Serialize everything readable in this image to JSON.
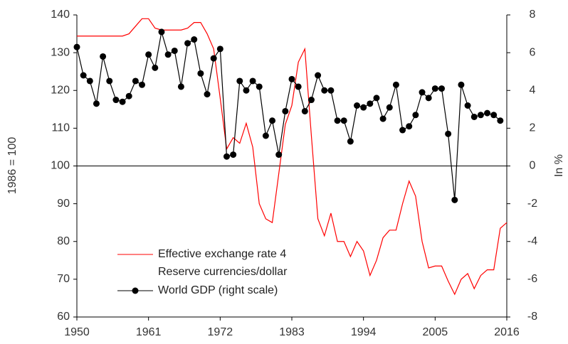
{
  "chart_data": {
    "type": "line",
    "y_label": "1986 = 100",
    "y2_label": "In %",
    "x": [
      1950,
      1951,
      1952,
      1953,
      1954,
      1955,
      1956,
      1957,
      1958,
      1959,
      1960,
      1961,
      1962,
      1963,
      1964,
      1965,
      1966,
      1967,
      1968,
      1969,
      1970,
      1971,
      1972,
      1973,
      1974,
      1975,
      1976,
      1977,
      1978,
      1979,
      1980,
      1981,
      1982,
      1983,
      1984,
      1985,
      1986,
      1987,
      1988,
      1989,
      1990,
      1991,
      1992,
      1993,
      1994,
      1995,
      1996,
      1997,
      1998,
      1999,
      2000,
      2001,
      2002,
      2003,
      2004,
      2005,
      2006,
      2007,
      2008,
      2009,
      2010,
      2011,
      2012,
      2013,
      2014,
      2015,
      2016
    ],
    "xlim": [
      1950,
      2016
    ],
    "xticks": [
      1950,
      1961,
      1972,
      1983,
      1994,
      2005,
      2016
    ],
    "ylim": [
      60,
      140
    ],
    "yticks": [
      60,
      70,
      80,
      90,
      100,
      110,
      120,
      130,
      140
    ],
    "y2lim": [
      -8,
      8
    ],
    "y2ticks": [
      -8,
      -6,
      -4,
      -2,
      0,
      2,
      4,
      6,
      8
    ],
    "series": [
      {
        "name": "Effective exchange rate 4 Reserve currencies/dollar",
        "color": "#ff0000",
        "axis": "y",
        "values": [
          134.4,
          134.4,
          134.4,
          134.4,
          134.4,
          134.4,
          134.4,
          134.4,
          135,
          137,
          139,
          139,
          136.5,
          136,
          136,
          136,
          136,
          136.5,
          138,
          138,
          135,
          131,
          118,
          104.5,
          107.5,
          106,
          111.3,
          105,
          90,
          86,
          85,
          98,
          111,
          116,
          127.5,
          131,
          108,
          86,
          81.5,
          87.5,
          80,
          80,
          76,
          80,
          77.5,
          71,
          75,
          81,
          83,
          83,
          90,
          96,
          92,
          80,
          73,
          73.5,
          73.5,
          69.5,
          66,
          70,
          71.5,
          67.5,
          71,
          72.5,
          72.5,
          83.5,
          85
        ]
      },
      {
        "name": "World GDP (right scale)",
        "color": "#000000",
        "axis": "y2",
        "marker": true,
        "values": [
          6.3,
          4.8,
          4.5,
          3.3,
          5.8,
          4.5,
          3.5,
          3.4,
          3.7,
          4.5,
          4.3,
          5.9,
          5.2,
          7.1,
          5.9,
          6.1,
          4.2,
          6.5,
          6.7,
          4.9,
          3.8,
          5.7,
          6.2,
          0.5,
          0.6,
          4.5,
          4.0,
          4.5,
          4.2,
          1.6,
          2.4,
          0.6,
          2.9,
          4.6,
          4.2,
          2.9,
          3.5,
          4.8,
          4.0,
          4.0,
          2.4,
          2.4,
          1.3,
          3.2,
          3.1,
          3.3,
          3.6,
          2.5,
          3.1,
          4.3,
          1.9,
          2.1,
          2.7,
          3.9,
          3.6,
          4.1,
          4.1,
          1.7,
          -1.8,
          4.3,
          3.2,
          2.6,
          2.7,
          2.8,
          2.7,
          2.4,
          null
        ]
      }
    ]
  }
}
